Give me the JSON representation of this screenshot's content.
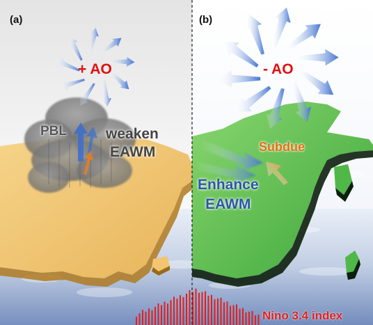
{
  "panels": {
    "a": {
      "label": "(a)",
      "ao": "+ AO",
      "pbl": "PBL",
      "monsoon_line1": "weaken",
      "monsoon_line2": "EAWM"
    },
    "b": {
      "label": "(b)",
      "ao": "- AO",
      "subdue": "Subdue",
      "monsoon_line1": "Enhance",
      "monsoon_line2": "EAWM"
    }
  },
  "footer": {
    "nino_label": "Nino 3.4 index"
  },
  "colors": {
    "ao_text": "#e01010",
    "left_land": "#f2c56e",
    "right_land": "#4fb848",
    "wind_arrow": "#4a7fd6",
    "subdue_arrow": "#f07d1e",
    "nino_bars": "#e02020",
    "sea": "#8fa6cc"
  },
  "icons": [
    "wind-arrow-icon",
    "cloud-icon",
    "subdue-arrow-icon",
    "nino-bars-icon"
  ]
}
